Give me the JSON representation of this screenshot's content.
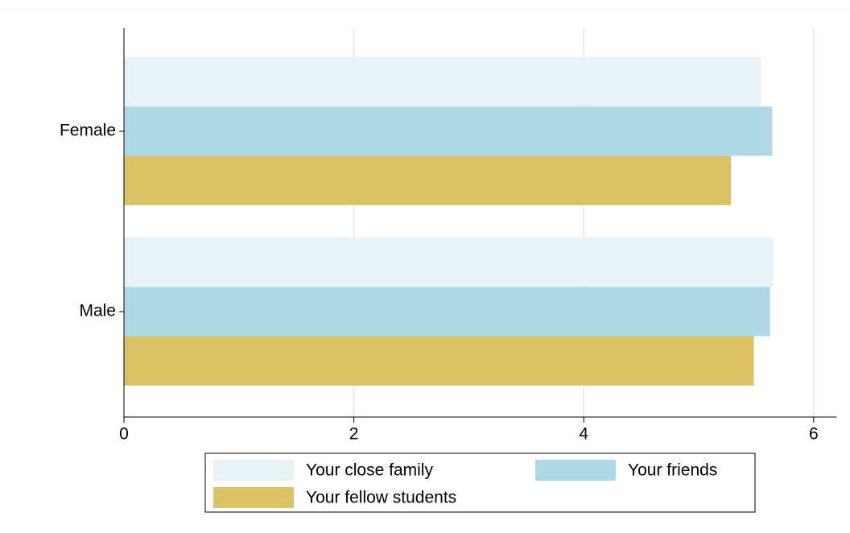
{
  "chart_data": {
    "type": "hbar",
    "categories": [
      "Female",
      "Male"
    ],
    "series": [
      {
        "name": "Your close family",
        "color": "#e8f1f3",
        "values": [
          5.54,
          5.65
        ]
      },
      {
        "name": "Your friends",
        "color": "#aed8e5",
        "values": [
          5.64,
          5.62
        ]
      },
      {
        "name": "Your fellow students",
        "color": "#dbc264",
        "values": [
          5.28,
          5.48
        ]
      }
    ],
    "xlim": [
      0,
      6.2
    ],
    "xticks": [
      0,
      2,
      4,
      6
    ],
    "grid": true
  }
}
